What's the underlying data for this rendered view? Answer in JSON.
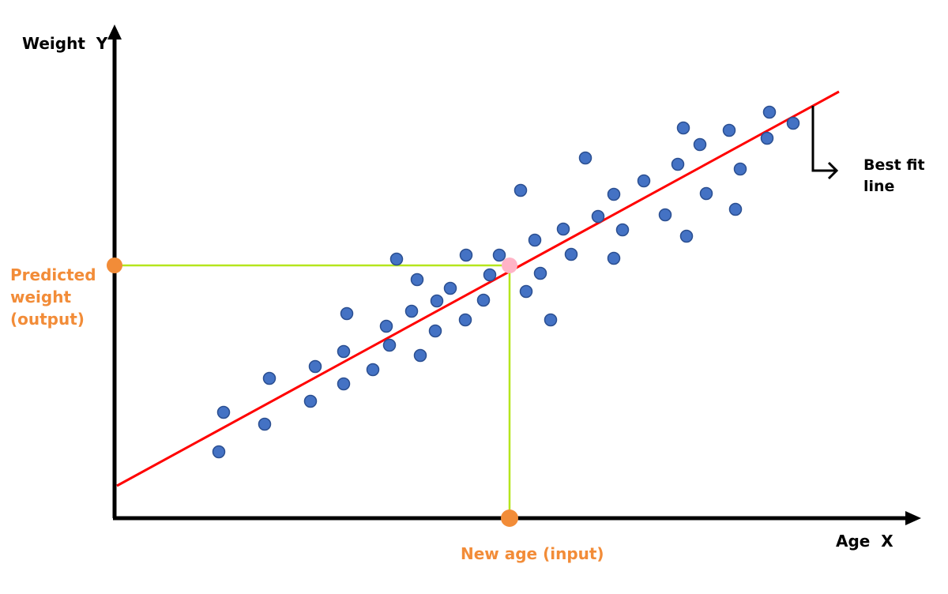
{
  "chart_data": {
    "type": "scatter",
    "title": "",
    "xlabel": "Age  X",
    "ylabel": "Weight  Y",
    "xlim": [
      0,
      1000
    ],
    "ylim": [
      0,
      600
    ],
    "points": [
      {
        "x": 132,
        "y": 84
      },
      {
        "x": 138,
        "y": 134
      },
      {
        "x": 190,
        "y": 119
      },
      {
        "x": 196,
        "y": 177
      },
      {
        "x": 248,
        "y": 148
      },
      {
        "x": 254,
        "y": 192
      },
      {
        "x": 290,
        "y": 170
      },
      {
        "x": 290,
        "y": 211
      },
      {
        "x": 294,
        "y": 259
      },
      {
        "x": 327,
        "y": 188
      },
      {
        "x": 344,
        "y": 243
      },
      {
        "x": 348,
        "y": 219
      },
      {
        "x": 357,
        "y": 328
      },
      {
        "x": 376,
        "y": 262
      },
      {
        "x": 383,
        "y": 302
      },
      {
        "x": 387,
        "y": 206
      },
      {
        "x": 406,
        "y": 237
      },
      {
        "x": 408,
        "y": 275
      },
      {
        "x": 425,
        "y": 291
      },
      {
        "x": 444,
        "y": 251
      },
      {
        "x": 445,
        "y": 333
      },
      {
        "x": 467,
        "y": 276
      },
      {
        "x": 475,
        "y": 308
      },
      {
        "x": 487,
        "y": 333
      },
      {
        "x": 514,
        "y": 415
      },
      {
        "x": 521,
        "y": 287
      },
      {
        "x": 532,
        "y": 352
      },
      {
        "x": 539,
        "y": 310
      },
      {
        "x": 552,
        "y": 251
      },
      {
        "x": 568,
        "y": 366
      },
      {
        "x": 578,
        "y": 334
      },
      {
        "x": 596,
        "y": 456
      },
      {
        "x": 612,
        "y": 382
      },
      {
        "x": 632,
        "y": 329
      },
      {
        "x": 632,
        "y": 410
      },
      {
        "x": 643,
        "y": 365
      },
      {
        "x": 670,
        "y": 427
      },
      {
        "x": 697,
        "y": 384
      },
      {
        "x": 713,
        "y": 448
      },
      {
        "x": 720,
        "y": 494
      },
      {
        "x": 724,
        "y": 357
      },
      {
        "x": 741,
        "y": 473
      },
      {
        "x": 749,
        "y": 411
      },
      {
        "x": 778,
        "y": 491
      },
      {
        "x": 786,
        "y": 391
      },
      {
        "x": 792,
        "y": 442
      },
      {
        "x": 826,
        "y": 481
      },
      {
        "x": 829,
        "y": 514
      },
      {
        "x": 859,
        "y": 500
      }
    ],
    "fit_line": {
      "x": [
        3,
        917
      ],
      "y": [
        41,
        540
      ]
    },
    "new_input": {
      "x": 500,
      "y": 320
    },
    "annotations": {
      "best_fit": "Best fit\nline",
      "predicted": "Predicted\nweight\n(output)",
      "new_age": "New age (input)"
    }
  },
  "colors": {
    "point": "#4472c4",
    "point_edge": "#2b4f91",
    "fit_line": "#ff0000",
    "guide": "#b5e61d",
    "marker": "#f28c38",
    "highlight": "#ffb3c6"
  }
}
